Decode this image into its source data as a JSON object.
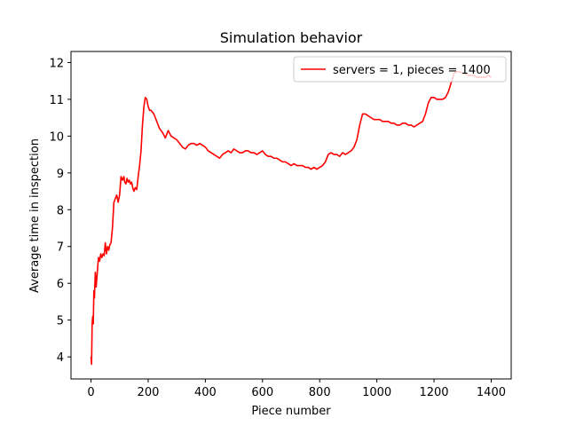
{
  "chart_data": {
    "type": "line",
    "title": "Simulation behavior",
    "xlabel": "Piece number",
    "ylabel": "Average time in inspection",
    "xlim": [
      -70,
      1470
    ],
    "ylim": [
      3.4,
      12.3
    ],
    "xticks": [
      0,
      200,
      400,
      600,
      800,
      1000,
      1200,
      1400
    ],
    "yticks": [
      4,
      5,
      6,
      7,
      8,
      9,
      10,
      11,
      12
    ],
    "grid": false,
    "legend_position": "top-right",
    "series": [
      {
        "name": "servers = 1, pieces = 1400",
        "color": "#ff0000",
        "x": [
          0,
          2,
          4,
          6,
          8,
          10,
          12,
          15,
          18,
          22,
          26,
          30,
          34,
          38,
          42,
          46,
          50,
          54,
          58,
          62,
          66,
          70,
          75,
          80,
          85,
          90,
          95,
          100,
          105,
          110,
          115,
          118,
          122,
          126,
          130,
          134,
          138,
          142,
          146,
          150,
          155,
          160,
          165,
          170,
          175,
          180,
          185,
          190,
          195,
          200,
          205,
          210,
          215,
          220,
          225,
          230,
          240,
          250,
          260,
          270,
          280,
          290,
          300,
          310,
          320,
          330,
          340,
          350,
          360,
          370,
          380,
          390,
          400,
          410,
          420,
          430,
          440,
          450,
          460,
          470,
          480,
          490,
          500,
          510,
          520,
          530,
          540,
          550,
          560,
          570,
          580,
          590,
          600,
          610,
          620,
          630,
          640,
          650,
          660,
          670,
          680,
          690,
          700,
          710,
          720,
          730,
          740,
          750,
          760,
          770,
          780,
          790,
          800,
          810,
          820,
          830,
          840,
          850,
          860,
          870,
          880,
          890,
          900,
          910,
          920,
          930,
          940,
          950,
          960,
          970,
          980,
          990,
          1000,
          1010,
          1020,
          1030,
          1040,
          1050,
          1060,
          1070,
          1080,
          1090,
          1100,
          1110,
          1120,
          1130,
          1140,
          1150,
          1160,
          1170,
          1180,
          1190,
          1200,
          1210,
          1220,
          1230,
          1240,
          1250,
          1260,
          1270,
          1280,
          1290,
          1300,
          1310,
          1320,
          1330,
          1340,
          1350,
          1360,
          1370,
          1380,
          1390,
          1400
        ],
        "y": [
          4.0,
          3.8,
          4.9,
          5.1,
          4.9,
          5.8,
          5.6,
          6.3,
          5.9,
          6.3,
          6.7,
          6.6,
          6.8,
          6.7,
          6.8,
          6.75,
          7.1,
          6.8,
          7.0,
          6.9,
          7.05,
          7.1,
          7.5,
          8.2,
          8.3,
          8.4,
          8.2,
          8.4,
          8.9,
          8.8,
          8.9,
          8.75,
          8.7,
          8.85,
          8.75,
          8.8,
          8.7,
          8.75,
          8.6,
          8.5,
          8.6,
          8.55,
          8.9,
          9.2,
          9.6,
          10.3,
          10.8,
          11.05,
          11.0,
          10.8,
          10.7,
          10.7,
          10.65,
          10.6,
          10.5,
          10.4,
          10.2,
          10.1,
          9.95,
          10.15,
          10.0,
          9.95,
          9.9,
          9.8,
          9.7,
          9.65,
          9.75,
          9.8,
          9.8,
          9.75,
          9.8,
          9.75,
          9.7,
          9.6,
          9.55,
          9.5,
          9.45,
          9.4,
          9.5,
          9.55,
          9.6,
          9.55,
          9.65,
          9.6,
          9.55,
          9.55,
          9.6,
          9.6,
          9.55,
          9.55,
          9.5,
          9.55,
          9.6,
          9.5,
          9.45,
          9.45,
          9.4,
          9.4,
          9.35,
          9.3,
          9.3,
          9.25,
          9.2,
          9.25,
          9.2,
          9.2,
          9.2,
          9.15,
          9.15,
          9.1,
          9.15,
          9.1,
          9.15,
          9.2,
          9.3,
          9.5,
          9.55,
          9.5,
          9.5,
          9.45,
          9.55,
          9.5,
          9.55,
          9.6,
          9.7,
          9.9,
          10.3,
          10.6,
          10.6,
          10.55,
          10.5,
          10.45,
          10.45,
          10.45,
          10.4,
          10.4,
          10.4,
          10.35,
          10.35,
          10.3,
          10.3,
          10.35,
          10.35,
          10.3,
          10.3,
          10.25,
          10.3,
          10.35,
          10.4,
          10.6,
          10.9,
          11.05,
          11.05,
          11.0,
          11.0,
          11.0,
          11.05,
          11.2,
          11.45,
          11.7,
          11.75,
          11.75,
          11.7,
          11.7,
          11.65,
          11.65,
          11.65,
          11.6,
          11.6,
          11.6,
          11.6,
          11.65,
          11.6
        ]
      }
    ]
  }
}
